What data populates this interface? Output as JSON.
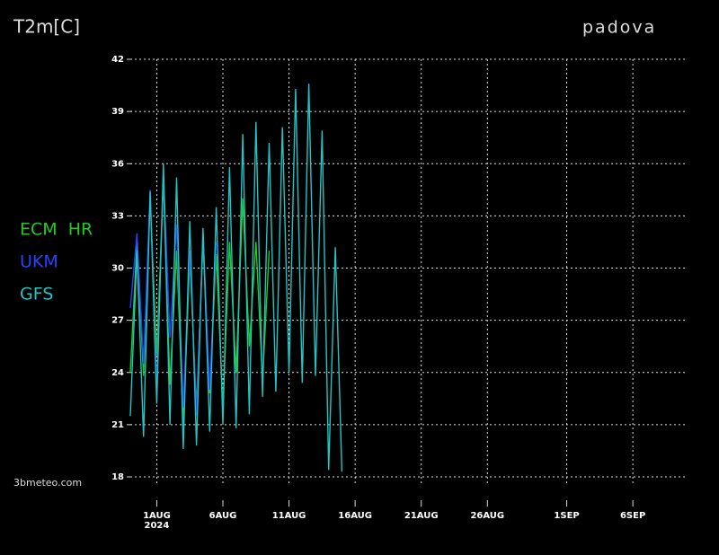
{
  "chart_data": {
    "type": "line",
    "title": "T2m[C]",
    "location": "padova",
    "source": "3bmeteo.com",
    "x_sublabel": "2024",
    "xlim": [
      -2,
      40
    ],
    "xticks": [
      {
        "value": 0,
        "label": "1AUG"
      },
      {
        "value": 5,
        "label": "6AUG"
      },
      {
        "value": 10,
        "label": "11AUG"
      },
      {
        "value": 15,
        "label": "16AUG"
      },
      {
        "value": 20,
        "label": "21AUG"
      },
      {
        "value": 25,
        "label": "26AUG"
      },
      {
        "value": 31,
        "label": "1SEP"
      },
      {
        "value": 36,
        "label": "6SEP"
      }
    ],
    "ylim": [
      18,
      42
    ],
    "yticks": [
      18,
      21,
      24,
      27,
      30,
      33,
      36,
      39,
      42
    ],
    "grid": true,
    "series": [
      {
        "name": "ECM HR",
        "color": "#22cc22",
        "x": [
          -2,
          -1.5,
          -1,
          -0.5,
          0,
          0.5,
          1,
          1.5,
          2,
          2.5,
          3,
          3.5,
          4,
          4.5,
          5,
          5.5,
          6,
          6.5,
          7,
          7.5,
          8,
          8.5
        ],
        "values": [
          24.0,
          31.5,
          23.8,
          34.0,
          25.0,
          35.0,
          23.3,
          31.0,
          21.0,
          30.5,
          22.0,
          31.5,
          22.8,
          30.8,
          22.0,
          31.5,
          24.0,
          34.0,
          25.5,
          31.5,
          23.5,
          31.0
        ]
      },
      {
        "name": "UKM",
        "color": "#2244ff",
        "x": [
          -2,
          -1.5,
          -1,
          -0.5,
          0,
          0.5,
          1,
          1.5,
          2,
          2.5,
          3,
          3.5,
          4,
          4.5
        ],
        "values": [
          27.7,
          32.0,
          24.5,
          34.5,
          23.0,
          35.5,
          26.0,
          32.5,
          22.0,
          31.0,
          21.5,
          32.0,
          23.0,
          31.5
        ]
      },
      {
        "name": "GFS",
        "color": "#22c4c4",
        "x": [
          -2,
          -1.5,
          -1,
          -0.5,
          0,
          0.5,
          1,
          1.5,
          2,
          2.5,
          3,
          3.5,
          4,
          4.5,
          5,
          5.5,
          6,
          6.5,
          7,
          7.5,
          8,
          8.5,
          9,
          9.5,
          10,
          10.5,
          11,
          11.5,
          12,
          12.5,
          13,
          13.5,
          14
        ],
        "values": [
          21.5,
          31.0,
          20.3,
          34.4,
          22.2,
          36.0,
          21.0,
          35.2,
          19.6,
          32.7,
          19.8,
          32.3,
          20.6,
          33.5,
          21.0,
          35.8,
          20.8,
          37.7,
          21.6,
          38.4,
          22.6,
          37.2,
          22.9,
          38.1,
          24.0,
          40.3,
          23.4,
          40.6,
          23.8,
          37.9,
          18.4,
          31.2,
          18.3
        ]
      }
    ]
  }
}
